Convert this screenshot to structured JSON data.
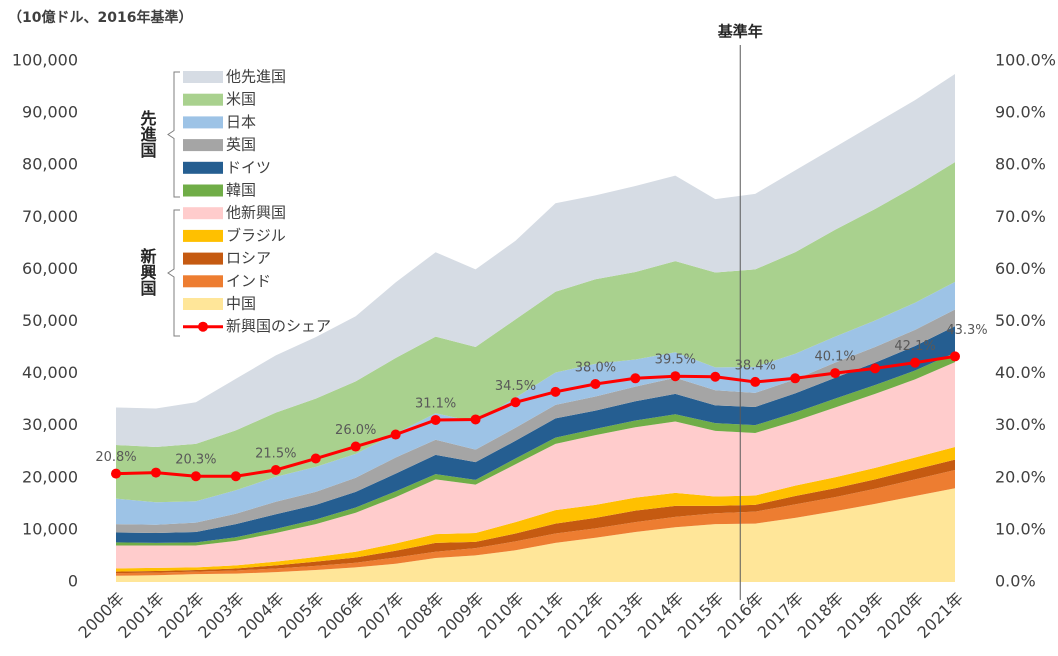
{
  "chart_data": {
    "type": "stacked_area_line",
    "subtitle": "（10億ドル、2016年基準）",
    "reference_line": {
      "x": "2016年",
      "label": "基準年"
    },
    "legend_groups": [
      "先進国",
      "新興国"
    ],
    "categories": [
      "2000年",
      "2001年",
      "2002年",
      "2003年",
      "2004年",
      "2005年",
      "2006年",
      "2007年",
      "2008年",
      "2009年",
      "2010年",
      "2011年",
      "2012年",
      "2013年",
      "2014年",
      "2015年",
      "2016年",
      "2017年",
      "2018年",
      "2019年",
      "2020年",
      "2021年"
    ],
    "series": [
      {
        "name": "中国",
        "color": "#ffe699",
        "values": [
          1200,
          1300,
          1500,
          1600,
          1900,
          2300,
          2800,
          3500,
          4600,
          5100,
          6100,
          7500,
          8500,
          9600,
          10500,
          11100,
          11200,
          12300,
          13600,
          15000,
          16500,
          18000
        ]
      },
      {
        "name": "インド",
        "color": "#ed7d31",
        "values": [
          500,
          500,
          500,
          600,
          700,
          800,
          900,
          1200,
          1200,
          1400,
          1700,
          1800,
          1800,
          1900,
          2000,
          2100,
          2300,
          2600,
          2700,
          2900,
          3200,
          3500
        ]
      },
      {
        "name": "ロシア",
        "color": "#c55a11",
        "values": [
          300,
          300,
          300,
          400,
          600,
          800,
          1000,
          1300,
          1700,
          1200,
          1500,
          1900,
          2000,
          2200,
          2100,
          1400,
          1300,
          1600,
          1700,
          1800,
          1900,
          2000
        ]
      },
      {
        "name": "ブラジル",
        "color": "#ffc000",
        "values": [
          600,
          600,
          500,
          600,
          700,
          900,
          1100,
          1400,
          1700,
          1700,
          2200,
          2600,
          2500,
          2500,
          2500,
          1800,
          1800,
          2000,
          2100,
          2200,
          2300,
          2400
        ]
      },
      {
        "name": "他新興国",
        "color": "#ffcccc",
        "values": [
          4400,
          4300,
          4200,
          4700,
          5500,
          6300,
          7500,
          8900,
          10500,
          9300,
          11100,
          12700,
          13400,
          13500,
          13700,
          12600,
          12000,
          12400,
          13400,
          14200,
          15000,
          16300
        ]
      },
      {
        "name": "韓国",
        "color": "#70ad47",
        "values": [
          600,
          500,
          600,
          700,
          800,
          900,
          1000,
          1100,
          1000,
          900,
          1100,
          1200,
          1200,
          1300,
          1400,
          1500,
          1500,
          1600,
          1700,
          1700,
          1700,
          1800
        ]
      },
      {
        "name": "ドイツ",
        "color": "#255e91",
        "values": [
          1900,
          1900,
          2000,
          2500,
          2800,
          2800,
          3000,
          3400,
          3700,
          3400,
          3400,
          3700,
          3500,
          3700,
          3900,
          3400,
          3500,
          3700,
          4000,
          4300,
          4700,
          5100
        ]
      },
      {
        "name": "英国",
        "color": "#a5a5a5",
        "values": [
          1600,
          1600,
          1800,
          2000,
          2400,
          2500,
          2700,
          3100,
          2900,
          2400,
          2500,
          2600,
          2700,
          2800,
          3100,
          2900,
          2700,
          2700,
          2900,
          3000,
          3100,
          3200
        ]
      },
      {
        "name": "日本",
        "color": "#9dc3e6",
        "values": [
          4900,
          4300,
          4100,
          4500,
          4800,
          4800,
          4600,
          4600,
          5100,
          5300,
          5800,
          6200,
          6300,
          5200,
          4900,
          4400,
          5000,
          4900,
          5000,
          5100,
          5200,
          5300
        ]
      },
      {
        "name": "米国",
        "color": "#a9d18e",
        "values": [
          10300,
          10600,
          11000,
          11500,
          12300,
          13100,
          13900,
          14500,
          14700,
          14400,
          15000,
          15500,
          16200,
          16800,
          17500,
          18200,
          18700,
          19500,
          20500,
          21400,
          22300,
          23000
        ]
      },
      {
        "name": "他先進国",
        "color": "#d6dce4",
        "values": [
          7200,
          7400,
          8000,
          9900,
          11000,
          11800,
          12500,
          14500,
          16200,
          14900,
          15100,
          17000,
          16100,
          16500,
          16400,
          14100,
          14500,
          15700,
          15900,
          16400,
          16600,
          16900
        ]
      },
      {
        "name": "新興国のシェア",
        "color": "#ff0000",
        "axis": "y2",
        "values": [
          20.8,
          21.0,
          20.3,
          20.3,
          21.5,
          23.7,
          26.0,
          28.3,
          31.1,
          31.2,
          34.5,
          36.5,
          38.0,
          39.1,
          39.5,
          39.4,
          38.4,
          39.1,
          40.1,
          41.0,
          42.1,
          43.3
        ],
        "value_labels": [
          "20.8%",
          null,
          "20.3%",
          null,
          "21.5%",
          null,
          "26.0%",
          null,
          "31.1%",
          null,
          "34.5%",
          null,
          "38.0%",
          null,
          "39.5%",
          null,
          "38.4%",
          null,
          "40.1%",
          null,
          "42.1%",
          "43.3%"
        ]
      }
    ],
    "ylim": [
      0,
      100000
    ],
    "yticks": [
      0,
      {
        "value": 10000,
        "label": "10,000"
      },
      {
        "value": 20000,
        "label": "20,000"
      },
      {
        "value": 30000,
        "label": "30,000"
      },
      {
        "value": 40000,
        "label": "40,000"
      },
      {
        "value": 50000,
        "label": "50,000"
      },
      {
        "value": 60000,
        "label": "60,000"
      },
      {
        "value": 70000,
        "label": "70,000"
      },
      {
        "value": 80000,
        "label": "80,000"
      },
      {
        "value": 90000,
        "label": "90,000"
      },
      {
        "value": 100000,
        "label": "100,000"
      }
    ],
    "y2lim": [
      0,
      100
    ],
    "y2ticks": [
      {
        "value": 0,
        "label": "0.0%"
      },
      {
        "value": 10,
        "label": "10.0%"
      },
      {
        "value": 20,
        "label": "20.0%"
      },
      {
        "value": 30,
        "label": "30.0%"
      },
      {
        "value": 40,
        "label": "40.0%"
      },
      {
        "value": 50,
        "label": "50.0%"
      },
      {
        "value": 60,
        "label": "60.0%"
      },
      {
        "value": 70,
        "label": "70.0%"
      },
      {
        "value": 80,
        "label": "80.0%"
      },
      {
        "value": 90,
        "label": "90.0%"
      },
      {
        "value": 100,
        "label": "100.0%"
      }
    ]
  }
}
